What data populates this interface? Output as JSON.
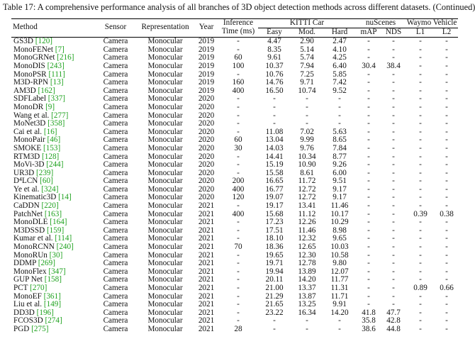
{
  "caption": "Table 17: A comprehensive performance analysis of all branches of 3D object detection methods across different datasets. (Continued)",
  "headers": {
    "method": "Method",
    "sensor": "Sensor",
    "representation": "Representation",
    "year": "Year",
    "inference_line1": "Inference",
    "inference_line2": "Time (ms)",
    "kitti": "KITTI Car",
    "kitti_easy": "Easy",
    "kitti_mod": "Mod.",
    "kitti_hard": "Hard",
    "nuscenes": "nuScenes",
    "nus_map": "mAP",
    "nus_nds": "NDS",
    "waymo": "Waymo Vehicle",
    "waymo_l1": "L1",
    "waymo_l2": "L2"
  },
  "colors": {
    "reference_green": "#1fa21f",
    "text": "#111111",
    "rule": "#000000"
  },
  "rows": [
    {
      "name": "GS3D",
      "ref": "[120]",
      "sensor": "Camera",
      "rep": "Monocular",
      "year": "2019",
      "time": "-",
      "easy": "4.47",
      "mod": "2.90",
      "hard": "2.47",
      "map": "-",
      "nds": "-",
      "l1": "-",
      "l2": "-"
    },
    {
      "name": "MonoFENet",
      "ref": "[7]",
      "sensor": "Camera",
      "rep": "Monocular",
      "year": "2019",
      "time": "-",
      "easy": "8.35",
      "mod": "5.14",
      "hard": "4.10",
      "map": "-",
      "nds": "-",
      "l1": "-",
      "l2": "-"
    },
    {
      "name": "MonoGRNet",
      "ref": "[216]",
      "sensor": "Camera",
      "rep": "Monocular",
      "year": "2019",
      "time": "60",
      "easy": "9.61",
      "mod": "5.74",
      "hard": "4.25",
      "map": "-",
      "nds": "-",
      "l1": "-",
      "l2": "-"
    },
    {
      "name": "MonoDIS",
      "ref": "[243]",
      "sensor": "Camera",
      "rep": "Monocular",
      "year": "2019",
      "time": "100",
      "easy": "10.37",
      "mod": "7.94",
      "hard": "6.40",
      "map": "30.4",
      "nds": "38.4",
      "l1": "-",
      "l2": "-"
    },
    {
      "name": "MonoPSR",
      "ref": "[111]",
      "sensor": "Camera",
      "rep": "Monocular",
      "year": "2019",
      "time": "-",
      "easy": "10.76",
      "mod": "7.25",
      "hard": "5.85",
      "map": "-",
      "nds": "-",
      "l1": "-",
      "l2": "-"
    },
    {
      "name": "M3D-RPN",
      "ref": "[13]",
      "sensor": "Camera",
      "rep": "Monocular",
      "year": "2019",
      "time": "160",
      "easy": "14.76",
      "mod": "9.71",
      "hard": "7.42",
      "map": "-",
      "nds": "-",
      "l1": "-",
      "l2": "-"
    },
    {
      "name": "AM3D",
      "ref": "[162]",
      "sensor": "Camera",
      "rep": "Monocular",
      "year": "2019",
      "time": "400",
      "easy": "16.50",
      "mod": "10.74",
      "hard": "9.52",
      "map": "-",
      "nds": "-",
      "l1": "-",
      "l2": "-"
    },
    {
      "name": "SDFLabel",
      "ref": "[337]",
      "sensor": "Camera",
      "rep": "Monocular",
      "year": "2020",
      "time": "-",
      "easy": "-",
      "mod": "-",
      "hard": "-",
      "map": "-",
      "nds": "-",
      "l1": "-",
      "l2": "-"
    },
    {
      "name": "MonoDR",
      "ref": "[9]",
      "sensor": "Camera",
      "rep": "Monocular",
      "year": "2020",
      "time": "-",
      "easy": "-",
      "mod": "-",
      "hard": "-",
      "map": "-",
      "nds": "-",
      "l1": "-",
      "l2": "-"
    },
    {
      "name": "Wang et al.",
      "ref": "[277]",
      "sensor": "Camera",
      "rep": "Monocular",
      "year": "2020",
      "time": "-",
      "easy": "-",
      "mod": "-",
      "hard": "-",
      "map": "-",
      "nds": "-",
      "l1": "-",
      "l2": "-"
    },
    {
      "name": "MoNet3D",
      "ref": "[358]",
      "sensor": "Camera",
      "rep": "Monocular",
      "year": "2020",
      "time": "-",
      "easy": "-",
      "mod": "-",
      "hard": "-",
      "map": "-",
      "nds": "-",
      "l1": "-",
      "l2": "-"
    },
    {
      "name": "Cai et al.",
      "ref": "[16]",
      "sensor": "Camera",
      "rep": "Monocular",
      "year": "2020",
      "time": "-",
      "easy": "11.08",
      "mod": "7.02",
      "hard": "5.63",
      "map": "-",
      "nds": "-",
      "l1": "-",
      "l2": "-"
    },
    {
      "name": "MonoPair",
      "ref": "[46]",
      "sensor": "Camera",
      "rep": "Monocular",
      "year": "2020",
      "time": "60",
      "easy": "13.04",
      "mod": "9.99",
      "hard": "8.65",
      "map": "-",
      "nds": "-",
      "l1": "-",
      "l2": "-"
    },
    {
      "name": "SMOKE",
      "ref": "[153]",
      "sensor": "Camera",
      "rep": "Monocular",
      "year": "2020",
      "time": "30",
      "easy": "14.03",
      "mod": "9.76",
      "hard": "7.84",
      "map": "-",
      "nds": "-",
      "l1": "-",
      "l2": "-"
    },
    {
      "name": "RTM3D",
      "ref": "[128]",
      "sensor": "Camera",
      "rep": "Monocular",
      "year": "2020",
      "time": "-",
      "easy": "14.41",
      "mod": "10.34",
      "hard": "8.77",
      "map": "-",
      "nds": "-",
      "l1": "-",
      "l2": "-"
    },
    {
      "name": "MoVi-3D",
      "ref": "[244]",
      "sensor": "Camera",
      "rep": "Monocular",
      "year": "2020",
      "time": "-",
      "easy": "15.19",
      "mod": "10.90",
      "hard": "9.26",
      "map": "-",
      "nds": "-",
      "l1": "-",
      "l2": "-"
    },
    {
      "name": "UR3D",
      "ref": "[239]",
      "sensor": "Camera",
      "rep": "Monocular",
      "year": "2020",
      "time": "-",
      "easy": "15.58",
      "mod": "8.61",
      "hard": "6.00",
      "map": "-",
      "nds": "-",
      "l1": "-",
      "l2": "-"
    },
    {
      "name": "D⁴LCN",
      "ref": "[60]",
      "sensor": "Camera",
      "rep": "Monocular",
      "year": "2020",
      "time": "200",
      "easy": "16.65",
      "mod": "11.72",
      "hard": "9.51",
      "map": "-",
      "nds": "-",
      "l1": "-",
      "l2": "-"
    },
    {
      "name": "Ye et al.",
      "ref": "[324]",
      "sensor": "Camera",
      "rep": "Monocular",
      "year": "2020",
      "time": "400",
      "easy": "16.77",
      "mod": "12.72",
      "hard": "9.17",
      "map": "-",
      "nds": "-",
      "l1": "-",
      "l2": "-"
    },
    {
      "name": "Kinematic3D",
      "ref": "[14]",
      "sensor": "Camera",
      "rep": "Monocular",
      "year": "2020",
      "time": "120",
      "easy": "19.07",
      "mod": "12.72",
      "hard": "9.17",
      "map": "-",
      "nds": "-",
      "l1": "-",
      "l2": "-"
    },
    {
      "name": "CaDDN",
      "ref": "[220]",
      "sensor": "Camera",
      "rep": "Monocular",
      "year": "2021",
      "time": "-",
      "easy": "19.17",
      "mod": "13.41",
      "hard": "11.46",
      "map": "-",
      "nds": "-",
      "l1": "-",
      "l2": "-"
    },
    {
      "name": "PatchNet",
      "ref": "[163]",
      "sensor": "Camera",
      "rep": "Monocular",
      "year": "2021",
      "time": "400",
      "easy": "15.68",
      "mod": "11.12",
      "hard": "10.17",
      "map": "-",
      "nds": "-",
      "l1": "0.39",
      "l2": "0.38"
    },
    {
      "name": "MonoDLE",
      "ref": "[164]",
      "sensor": "Camera",
      "rep": "Monocular",
      "year": "2021",
      "time": "-",
      "easy": "17.23",
      "mod": "12.26",
      "hard": "10.29",
      "map": "-",
      "nds": "-",
      "l1": "-",
      "l2": "-"
    },
    {
      "name": "M3DSSD",
      "ref": "[159]",
      "sensor": "Camera",
      "rep": "Monocular",
      "year": "2021",
      "time": "-",
      "easy": "17.51",
      "mod": "11.46",
      "hard": "8.98",
      "map": "-",
      "nds": "-",
      "l1": "-",
      "l2": "-"
    },
    {
      "name": "Kumar et al.",
      "ref": "[114]",
      "sensor": "Camera",
      "rep": "Monocular",
      "year": "2021",
      "time": "-",
      "easy": "18.10",
      "mod": "12.32",
      "hard": "9.65",
      "map": "-",
      "nds": "-",
      "l1": "-",
      "l2": "-"
    },
    {
      "name": "MonoRCNN",
      "ref": "[240]",
      "sensor": "Camera",
      "rep": "Monocular",
      "year": "2021",
      "time": "70",
      "easy": "18.36",
      "mod": "12.65",
      "hard": "10.03",
      "map": "-",
      "nds": "-",
      "l1": "-",
      "l2": "-"
    },
    {
      "name": "MonoRUn",
      "ref": "[30]",
      "sensor": "Camera",
      "rep": "Monocular",
      "year": "2021",
      "time": "-",
      "easy": "19.65",
      "mod": "12.30",
      "hard": "10.58",
      "map": "-",
      "nds": "-",
      "l1": "-",
      "l2": "-"
    },
    {
      "name": "DDMP",
      "ref": "[269]",
      "sensor": "Camera",
      "rep": "Monocular",
      "year": "2021",
      "time": "-",
      "easy": "19.71",
      "mod": "12.78",
      "hard": "9.80",
      "map": "-",
      "nds": "-",
      "l1": "-",
      "l2": "-"
    },
    {
      "name": "MonoFlex",
      "ref": "[347]",
      "sensor": "Camera",
      "rep": "Monocular",
      "year": "2021",
      "time": "-",
      "easy": "19.94",
      "mod": "13.89",
      "hard": "12.07",
      "map": "-",
      "nds": "-",
      "l1": "-",
      "l2": "-"
    },
    {
      "name": "GUP Net",
      "ref": "[158]",
      "sensor": "Camera",
      "rep": "Monocular",
      "year": "2021",
      "time": "-",
      "easy": "20.11",
      "mod": "14.20",
      "hard": "11.77",
      "map": "-",
      "nds": "-",
      "l1": "-",
      "l2": "-"
    },
    {
      "name": "PCT",
      "ref": "[270]",
      "sensor": "Camera",
      "rep": "Monocular",
      "year": "2021",
      "time": "-",
      "easy": "21.00",
      "mod": "13.37",
      "hard": "11.31",
      "map": "-",
      "nds": "-",
      "l1": "0.89",
      "l2": "0.66"
    },
    {
      "name": "MonoEF",
      "ref": "[361]",
      "sensor": "Camera",
      "rep": "Monocular",
      "year": "2021",
      "time": "-",
      "easy": "21.29",
      "mod": "13.87",
      "hard": "11.71",
      "map": "-",
      "nds": "-",
      "l1": "-",
      "l2": "-"
    },
    {
      "name": "Liu et al.",
      "ref": "[149]",
      "sensor": "Camera",
      "rep": "Monocular",
      "year": "2021",
      "time": "-",
      "easy": "21.65",
      "mod": "13.25",
      "hard": "9.91",
      "map": "-",
      "nds": "-",
      "l1": "-",
      "l2": "-"
    },
    {
      "name": "DD3D",
      "ref": "[196]",
      "sensor": "Camera",
      "rep": "Monocular",
      "year": "2021",
      "time": "-",
      "easy": "23.22",
      "mod": "16.34",
      "hard": "14.20",
      "map": "41.8",
      "nds": "47.7",
      "l1": "-",
      "l2": "-"
    },
    {
      "name": "FCOS3D",
      "ref": "[274]",
      "sensor": "Camera",
      "rep": "Monocular",
      "year": "2021",
      "time": "-",
      "easy": "-",
      "mod": "-",
      "hard": "-",
      "map": "35.8",
      "nds": "42.8",
      "l1": "-",
      "l2": "-"
    },
    {
      "name": "PGD",
      "ref": "[275]",
      "sensor": "Camera",
      "rep": "Monocular",
      "year": "2021",
      "time": "28",
      "easy": "-",
      "mod": "-",
      "hard": "-",
      "map": "38.6",
      "nds": "44.8",
      "l1": "-",
      "l2": "-"
    }
  ]
}
